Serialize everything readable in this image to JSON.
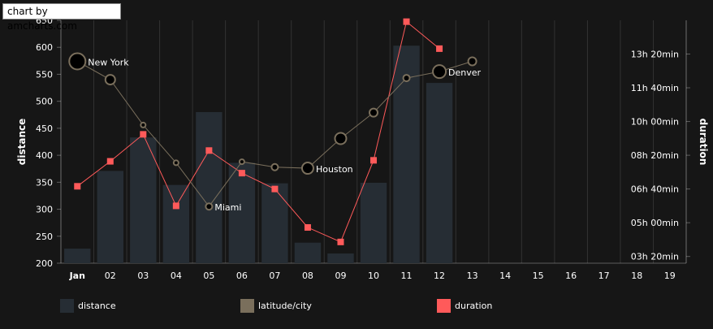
{
  "credit": "chart by amcharts.com",
  "colors": {
    "background": "#161616",
    "distance": "#262d34",
    "latitude": "#7a6f5c",
    "latitude_fill": "#000000",
    "duration": "#ff5a5a",
    "text": "#ffffff"
  },
  "legend": [
    {
      "label": "distance",
      "color": "#262d34"
    },
    {
      "label": "latitude/city",
      "color": "#7a6f5c"
    },
    {
      "label": "duration",
      "color": "#ff5a5a"
    }
  ],
  "chart_data": {
    "type": "bar",
    "categories": [
      "Jan",
      "02",
      "03",
      "04",
      "05",
      "06",
      "07",
      "08",
      "09",
      "10",
      "11",
      "12",
      "13",
      "14",
      "15",
      "16",
      "17",
      "18",
      "19"
    ],
    "ylabel_left": "distance",
    "ylabel_right": "duration",
    "y_left_ticks": [
      "200",
      "250",
      "300",
      "350",
      "400",
      "450",
      "500",
      "550",
      "600",
      "650"
    ],
    "y_left_range": [
      200,
      650
    ],
    "y_right_ticks": [
      "03h 20min",
      "05h 00min",
      "06h 40min",
      "08h 20min",
      "10h 00min",
      "11h 40min",
      "13h 20min"
    ],
    "y_right_range_minutes": [
      180,
      900
    ],
    "series": [
      {
        "name": "distance",
        "kind": "column",
        "values": [
          227,
          371,
          433,
          345,
          480,
          386,
          348,
          238,
          218,
          349,
          603,
          534,
          null,
          null,
          null,
          null,
          null,
          null,
          null
        ]
      },
      {
        "name": "latitude/city",
        "kind": "line-bullets",
        "values": [
          574,
          540,
          456,
          386,
          305,
          388,
          378,
          376,
          431,
          479,
          543,
          555,
          574,
          null,
          null,
          null,
          null,
          null,
          null
        ],
        "bullet_sizes": [
          10,
          6,
          3,
          3,
          4,
          3,
          4,
          7,
          7,
          5,
          4,
          8,
          5,
          null,
          null,
          null,
          null,
          null,
          null
        ],
        "city_labels": [
          "New York",
          "",
          "",
          "",
          "Miami",
          "",
          "",
          "Houston",
          "",
          "",
          "",
          "Denver",
          "",
          "",
          "",
          "",
          "",
          "",
          ""
        ]
      },
      {
        "name": "duration",
        "kind": "line-squares",
        "values_minutes": [
          408,
          482,
          562,
          350,
          514,
          447,
          400,
          286,
          243,
          485,
          896,
          816,
          null,
          null,
          null,
          null,
          null,
          null,
          null
        ]
      }
    ]
  }
}
